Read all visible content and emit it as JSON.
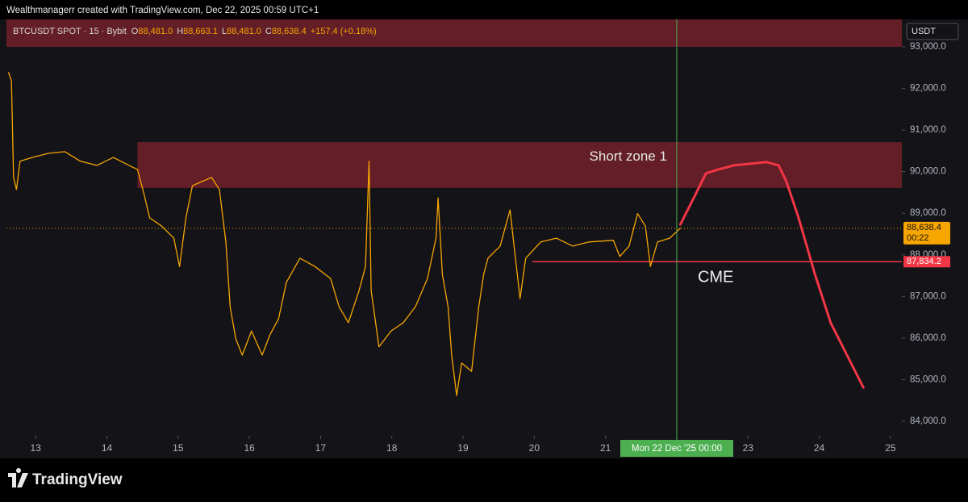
{
  "header": {
    "caption": "Wealthmanagerr created with TradingView.com, Dec 22, 2025 00:59 UTC+1"
  },
  "chart_data": {
    "type": "line",
    "legend": {
      "symbol": "BTCUSDT SPOT · 15 · Bybit",
      "ohlc": [
        {
          "key": "O",
          "value": "88,481.0"
        },
        {
          "key": "H",
          "value": "88,663.1"
        },
        {
          "key": "L",
          "value": "88,481.0"
        },
        {
          "key": "C",
          "value": "88,638.4"
        }
      ],
      "change": "+157.4 (+0.18%)"
    },
    "currency": "USDT",
    "series": [
      {
        "color": "#f7a600",
        "x": [
          12.62,
          12.66,
          12.69,
          12.73,
          12.78,
          12.95,
          13.18,
          13.41,
          13.63,
          13.86,
          14.09,
          14.31,
          14.43,
          14.52,
          14.6,
          14.77,
          14.94,
          15.02,
          15.11,
          15.2,
          15.33,
          15.47,
          15.58,
          15.67,
          15.73,
          15.81,
          15.9,
          16.03,
          16.18,
          16.29,
          16.41,
          16.52,
          16.71,
          16.92,
          17.14,
          17.26,
          17.39,
          17.54,
          17.63,
          17.68,
          17.71,
          17.82,
          17.99,
          18.16,
          18.33,
          18.5,
          18.62,
          18.65,
          18.71,
          18.79,
          18.84,
          18.91,
          18.98,
          19.12,
          19.22,
          19.29,
          19.35,
          19.52,
          19.66,
          19.71,
          19.8,
          19.88,
          20.09,
          20.31,
          20.54,
          20.77,
          21.11,
          21.2,
          21.33,
          21.45,
          21.56,
          21.63,
          21.73,
          21.9,
          22.05
        ],
        "values": [
          92380,
          92185,
          89860,
          89570,
          90250,
          90340,
          90440,
          90480,
          90250,
          90150,
          90340,
          90150,
          90050,
          89470,
          88890,
          88690,
          88400,
          87720,
          88890,
          89660,
          89760,
          89860,
          89570,
          88310,
          86750,
          85980,
          85590,
          86170,
          85590,
          86080,
          86460,
          87340,
          87920,
          87720,
          87430,
          86750,
          86370,
          87140,
          87720,
          90250,
          87140,
          85790,
          86170,
          86370,
          86750,
          87430,
          88400,
          89370,
          87530,
          86750,
          85590,
          84620,
          85400,
          85200,
          86750,
          87530,
          87920,
          88210,
          89080,
          88310,
          86950,
          87920,
          88310,
          88400,
          88210,
          88310,
          88350,
          87960,
          88210,
          88990,
          88690,
          87720,
          88310,
          88400,
          88640
        ]
      },
      {
        "color": "#f23645",
        "x": [
          22.05,
          22.24,
          22.41,
          22.58,
          22.8,
          23.03,
          23.26,
          23.43,
          23.54,
          23.71,
          23.94,
          24.16,
          24.39,
          24.62
        ],
        "values": [
          88730,
          89370,
          89960,
          90050,
          90150,
          90190,
          90230,
          90150,
          89760,
          88890,
          87530,
          86370,
          85590,
          84810
        ]
      }
    ],
    "zones": [
      {
        "x0": 12.59,
        "ylim": [
          93000,
          93660
        ],
        "color": "#6e2029"
      },
      {
        "label": "Short zone 1",
        "x0": 14.43,
        "ylim": [
          89610,
          90710
        ],
        "color": "#6e2029"
      }
    ],
    "levels": [
      {
        "label": "CME",
        "value": 87834.2,
        "value_label": "87,834.2",
        "x0": 19.97,
        "color": "#f23645"
      }
    ],
    "last_price": {
      "value": 88638.4,
      "label": "88,638.4",
      "countdown": "00:22",
      "color": "#f7a600"
    },
    "crosshair": {
      "x": 22,
      "label": "Mon 22 Dec '25  00:00",
      "color": "#4caf50"
    },
    "xlim": [
      12.59,
      25.16
    ],
    "xticks": [
      13,
      14,
      15,
      16,
      17,
      18,
      19,
      20,
      21,
      23,
      24,
      25
    ],
    "ylim": [
      83650,
      93660
    ],
    "yticks": [
      {
        "value": 84000,
        "label": "84,000.0"
      },
      {
        "value": 85000,
        "label": "85,000.0"
      },
      {
        "value": 86000,
        "label": "86,000.0"
      },
      {
        "value": 87000,
        "label": "87,000.0"
      },
      {
        "value": 88000,
        "label": "88,000.0"
      },
      {
        "value": 89000,
        "label": "89,000.0"
      },
      {
        "value": 90000,
        "label": "90,000.0"
      },
      {
        "value": 91000,
        "label": "91,000.0"
      },
      {
        "value": 92000,
        "label": "92,000.0"
      },
      {
        "value": 93000,
        "label": "93,000.0"
      }
    ]
  },
  "footer": {
    "brand": "TradingView"
  }
}
